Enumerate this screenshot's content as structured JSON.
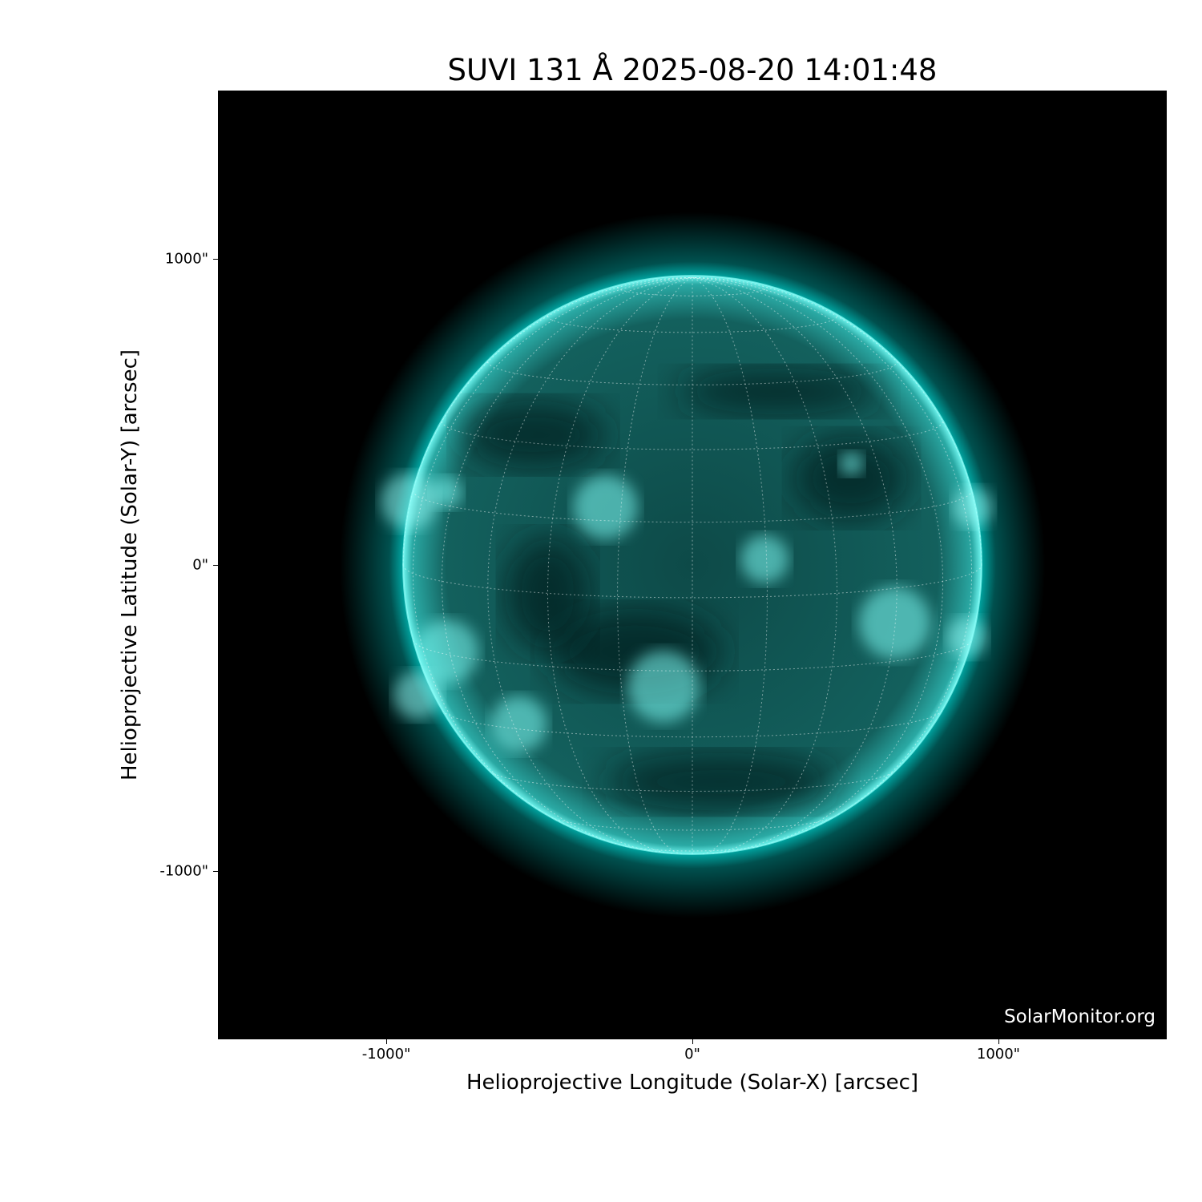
{
  "title": "SUVI 131 Å 2025-08-20 14:01:48",
  "credit": "SolarMonitor.org",
  "chart_data": {
    "type": "image",
    "title": "SUVI 131 Å 2025-08-20 14:01:48",
    "xlabel": "Helioprojective Longitude (Solar-X) [arcsec]",
    "ylabel": "Helioprojective Latitude (Solar-Y) [arcsec]",
    "xlim": [
      -1550,
      1550
    ],
    "ylim": [
      -1550,
      1550
    ],
    "xticks": [
      {
        "value": -1000,
        "label": "-1000\""
      },
      {
        "value": 0,
        "label": "0\""
      },
      {
        "value": 1000,
        "label": "1000\""
      }
    ],
    "yticks": [
      {
        "value": 1000,
        "label": "1000\""
      },
      {
        "value": 0,
        "label": "0\""
      },
      {
        "value": -1000,
        "label": "-1000\""
      }
    ],
    "colormap_color": "#00e5e0",
    "background_color": "#000000",
    "solar_radius_arcsec": 945,
    "grid": "heliographic lat/lon, dotted, 15° spacing"
  }
}
